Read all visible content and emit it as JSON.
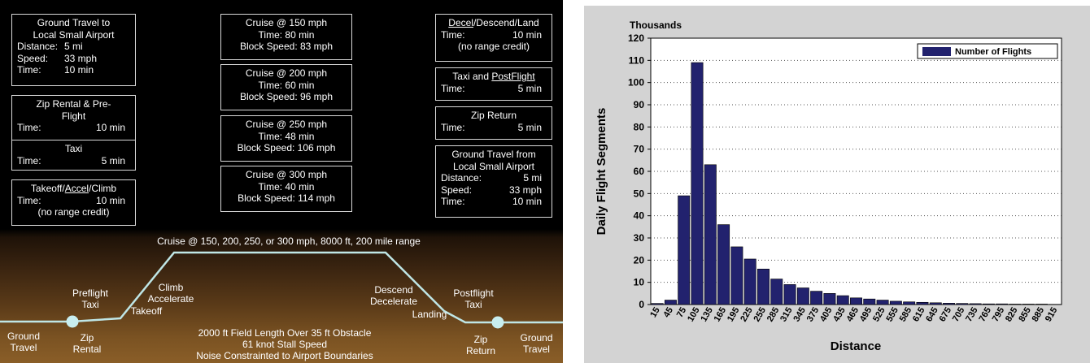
{
  "left_panel": {
    "box_ground_to": {
      "l1": "Ground Travel to",
      "l2": "Local Small Airport",
      "k1": "Distance:",
      "v1": "5 mi",
      "k2": "Speed:",
      "v2": "33 mph",
      "k3": "Time:",
      "v3": "10 min"
    },
    "box_zip_rental": {
      "l1": "Zip Rental & Pre-",
      "l2": "Flight",
      "k": "Time:",
      "v": "10 min"
    },
    "box_taxi": {
      "l1": "Taxi",
      "k": "Time:",
      "v": "5 min"
    },
    "box_takeoff": {
      "l1a": "Takeoff/",
      "l1b": "Accel",
      "l1c": "/Climb",
      "k": "Time:",
      "v": "10 min",
      "l3": "(no range credit)"
    },
    "cruise_boxes": [
      {
        "title": "Cruise @ 150 mph",
        "time": "Time:   80 min",
        "block": "Block Speed: 83 mph"
      },
      {
        "title": "Cruise @ 200 mph",
        "time": "Time:   60 min",
        "block": "Block Speed: 96 mph"
      },
      {
        "title": "Cruise @ 250 mph",
        "time": "Time:   48 min",
        "block": "Block Speed: 106 mph"
      },
      {
        "title": "Cruise @ 300 mph",
        "time": "Time:   40 min",
        "block": "Block Speed: 114 mph"
      }
    ],
    "box_decel": {
      "l1a": "Decel",
      "l1b": "/Descend/Land",
      "k": "Time:",
      "v": "10 min",
      "l3": "(no range credit)"
    },
    "box_taxi_post": {
      "l1a": "Taxi and ",
      "l1b": "PostFlight",
      "k": "Time:",
      "v": "5 min"
    },
    "box_zip_return": {
      "l1": "Zip Return",
      "k": "Time:",
      "v": "5 min"
    },
    "box_ground_from": {
      "l1": "Ground Travel from",
      "l2": "Local Small Airport",
      "k1": "Distance:",
      "v1": "5 mi",
      "k2": "Speed:",
      "v2": "33 mph",
      "k3": "Time:",
      "v3": "10 min"
    },
    "profile": {
      "cruise_label": "Cruise @ 150, 200, 250, or 300  mph, 8000 ft, 200 mile range",
      "preflight_taxi": [
        "Preflight",
        "Taxi"
      ],
      "climb": [
        "Climb",
        "Accelerate",
        "Takeoff"
      ],
      "descend": [
        "Descend",
        "Decelerate",
        "Landing"
      ],
      "postflight_taxi": [
        "Postflight",
        "Taxi"
      ],
      "ground_travel_l": [
        "Ground",
        "Travel"
      ],
      "zip_rental": [
        "Zip",
        "Rental"
      ],
      "zip_return": [
        "Zip",
        "Return"
      ],
      "ground_travel_r": [
        "Ground",
        "Travel"
      ],
      "notes": [
        "2000 ft Field Length Over 35 ft Obstacle",
        "61 knot Stall Speed",
        "Noise Constrainted to Airport Boundaries"
      ]
    }
  },
  "chart_data": {
    "type": "bar",
    "title": "",
    "units_label": "Thousands",
    "xlabel": "Distance",
    "ylabel": "Daily Flight Segments",
    "ylim": [
      0,
      120
    ],
    "yticks": [
      0,
      10,
      20,
      30,
      40,
      50,
      60,
      70,
      80,
      90,
      100,
      110,
      120
    ],
    "grid": "horizontal dotted",
    "legend_position": "top-right",
    "bar_color": "#22226e",
    "categories": [
      "15",
      "45",
      "75",
      "105",
      "135",
      "165",
      "195",
      "225",
      "255",
      "285",
      "315",
      "345",
      "375",
      "405",
      "435",
      "465",
      "495",
      "525",
      "555",
      "585",
      "615",
      "645",
      "675",
      "705",
      "735",
      "765",
      "795",
      "825",
      "855",
      "885",
      "915"
    ],
    "series": [
      {
        "name": "Number of Flights",
        "values": [
          0.5,
          2,
          49,
          109,
          63,
          36,
          26,
          20.5,
          16,
          11.5,
          9,
          7.5,
          6,
          5,
          4,
          3,
          2.5,
          2,
          1.5,
          1.2,
          1,
          0.8,
          0.6,
          0.5,
          0.4,
          0.3,
          0.3,
          0.2,
          0.2,
          0.2,
          0.1
        ]
      }
    ]
  }
}
